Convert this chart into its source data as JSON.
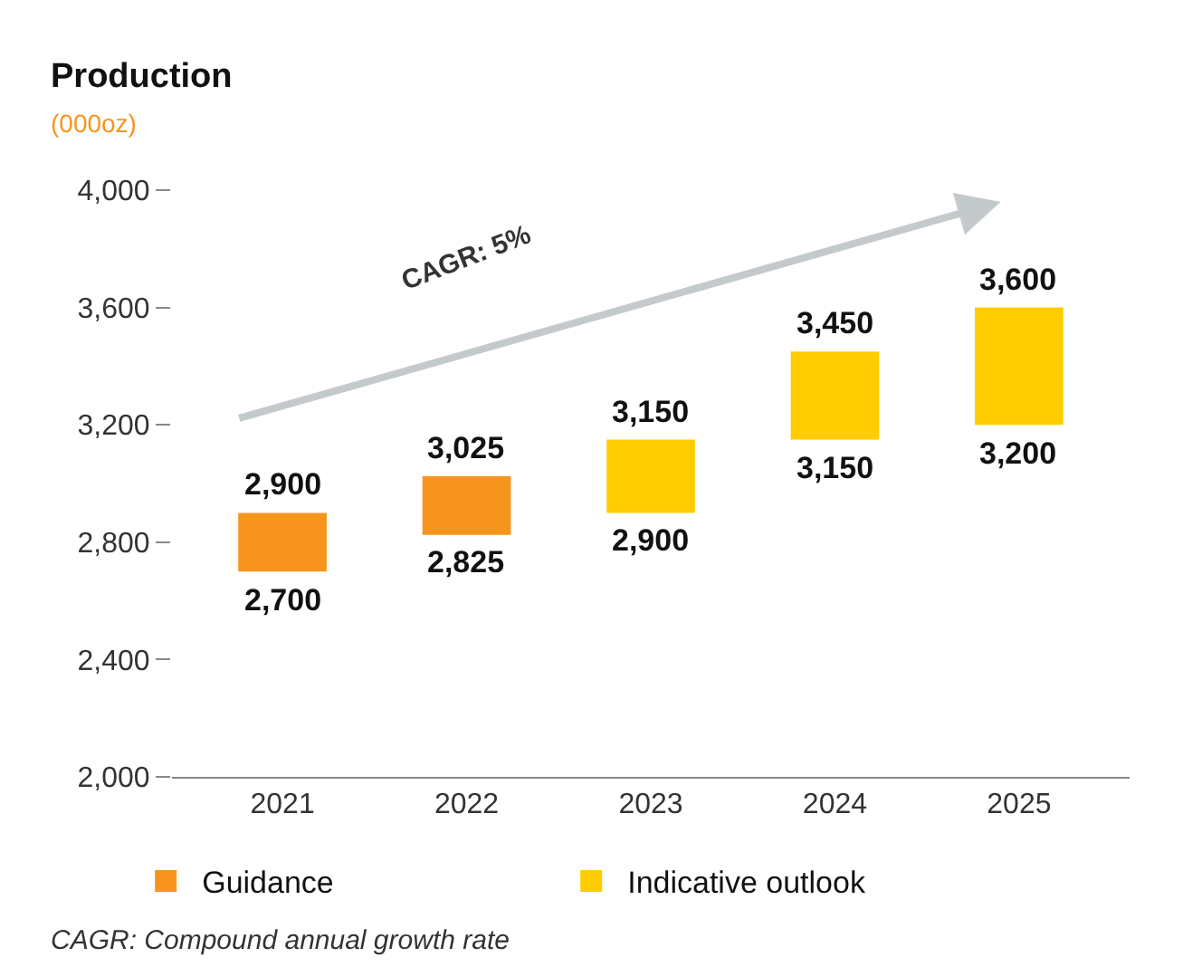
{
  "chart_data": {
    "type": "bar",
    "title": "Production",
    "subtitle": "(000oz)",
    "categories": [
      "2021",
      "2022",
      "2023",
      "2024",
      "2025"
    ],
    "series": [
      {
        "name": "Guidance",
        "color": "#f7941d",
        "base": [
          2700,
          2825,
          null,
          null,
          null
        ],
        "values": [
          200,
          200,
          null,
          null,
          null
        ]
      },
      {
        "name": "Indicative outlook",
        "color": "#ffcc00",
        "base": [
          null,
          null,
          2900,
          3150,
          3200
        ],
        "values": [
          null,
          null,
          250,
          300,
          400
        ]
      }
    ],
    "ylim": [
      2000,
      4000
    ],
    "yticks": [
      {
        "value": 2000,
        "label": "2,000"
      },
      {
        "value": 2400,
        "label": "2,400"
      },
      {
        "value": 2800,
        "label": "2,800"
      },
      {
        "value": 3200,
        "label": "3,200"
      },
      {
        "value": 3600,
        "label": "3,600"
      },
      {
        "value": 4000,
        "label": "4,000"
      }
    ],
    "legend": "bottom",
    "annotations": [
      {
        "text": "2,900",
        "x": "2021",
        "y": 2900
      },
      {
        "text": "2,700",
        "x": "2021",
        "y": 2700
      },
      {
        "text": "3,025",
        "x": "2022",
        "y": 3025
      },
      {
        "text": "2,825",
        "x": "2022",
        "y": 2825
      },
      {
        "text": "3,150",
        "x": "2023",
        "y": 3150
      },
      {
        "text": "2,900",
        "x": "2023",
        "y": 2900
      },
      {
        "text": "3,450",
        "x": "2024",
        "y": 3450
      },
      {
        "text": "3,150",
        "x": "2024",
        "y": 3150
      },
      {
        "text": "3,600",
        "x": "2025",
        "y": 3600
      },
      {
        "text": "3,200",
        "x": "2025",
        "y": 3200
      },
      "CAGR: 5%",
      "CAGR: Compound annual growth rate"
    ]
  }
}
